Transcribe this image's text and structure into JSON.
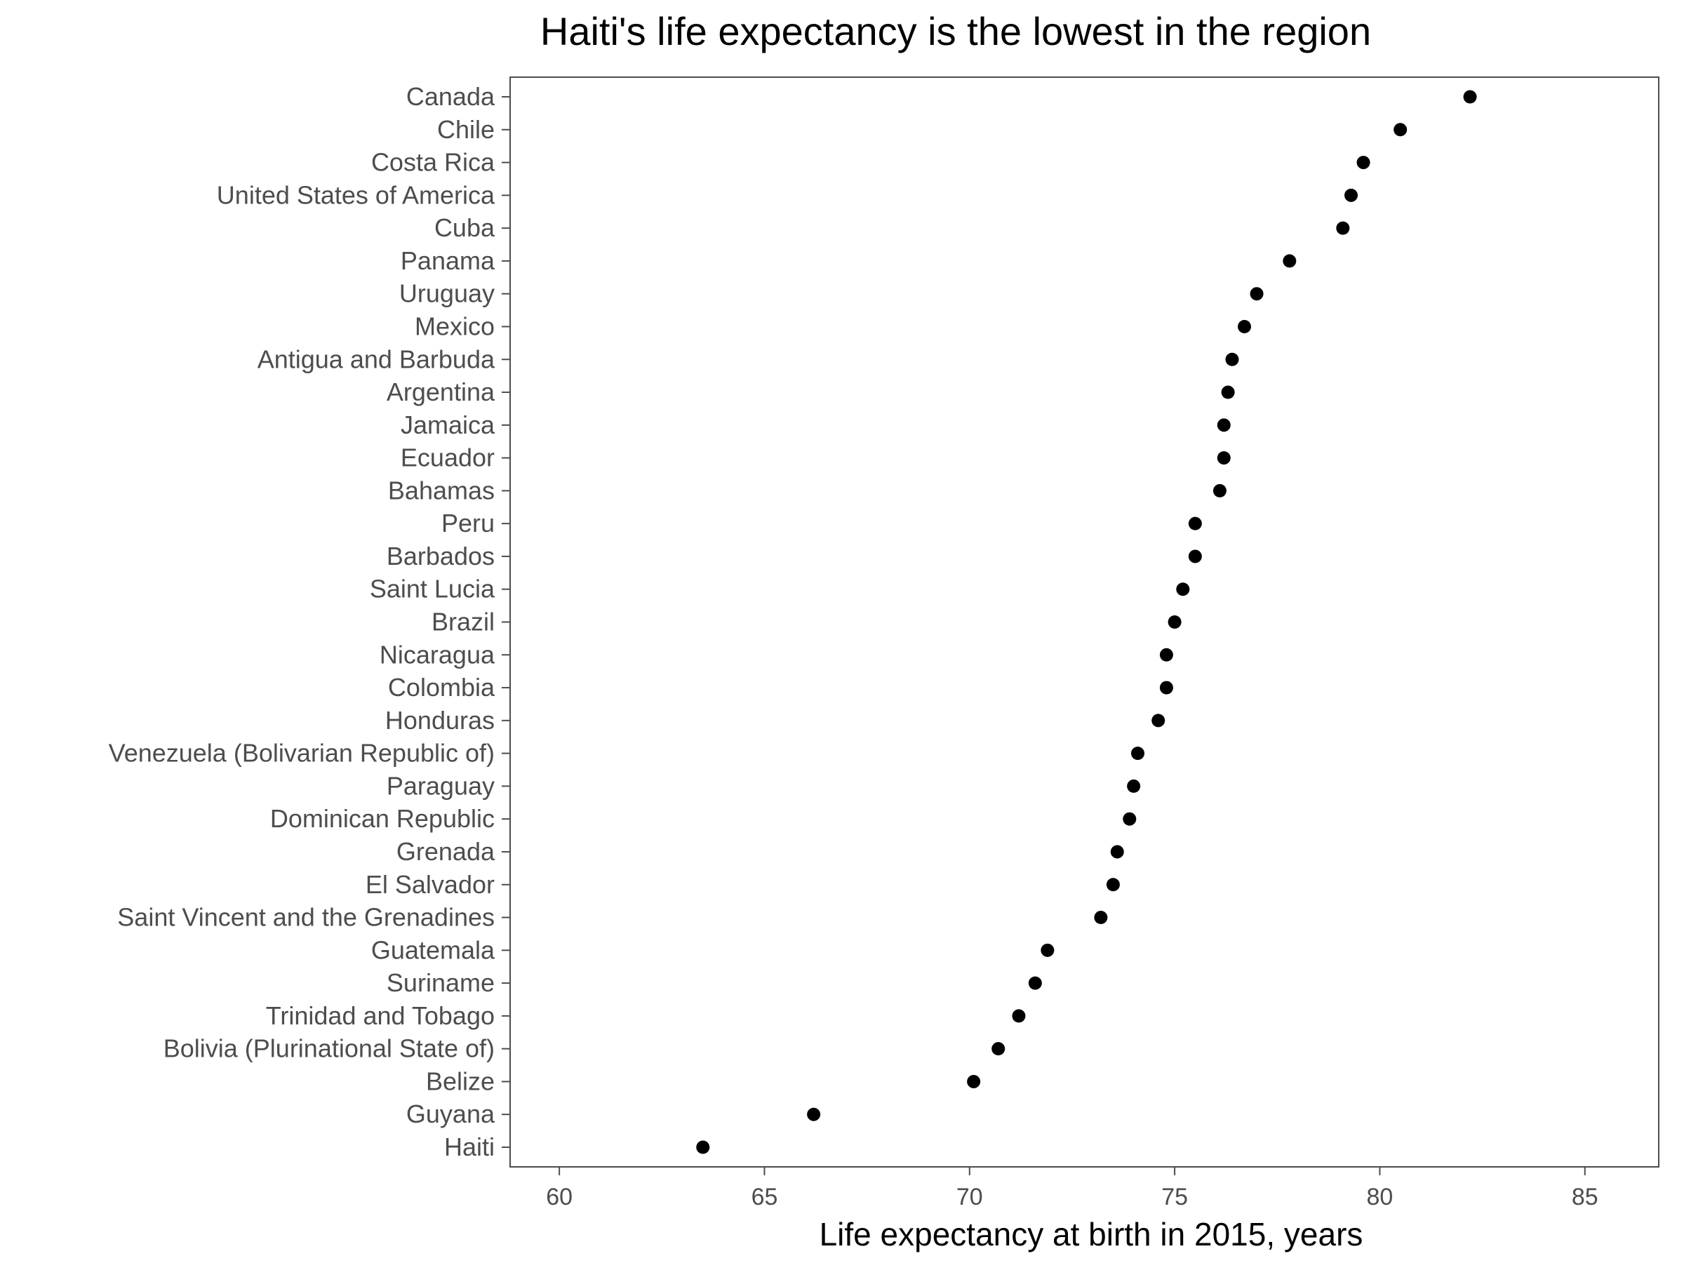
{
  "chart_data": {
    "type": "scatter",
    "title": "Haiti's life expectancy is the lowest in the region",
    "xlabel": "Life expectancy at birth in 2015, years",
    "ylabel": "",
    "xlim": [
      58.8,
      86.8
    ],
    "x_ticks": [
      60,
      65,
      70,
      75,
      80,
      85
    ],
    "grid": false,
    "legend": "none",
    "categories": [
      "Canada",
      "Chile",
      "Costa Rica",
      "United States of America",
      "Cuba",
      "Panama",
      "Uruguay",
      "Mexico",
      "Antigua and Barbuda",
      "Argentina",
      "Jamaica",
      "Ecuador",
      "Bahamas",
      "Peru",
      "Barbados",
      "Saint Lucia",
      "Brazil",
      "Nicaragua",
      "Colombia",
      "Honduras",
      "Venezuela (Bolivarian Republic of)",
      "Paraguay",
      "Dominican Republic",
      "Grenada",
      "El Salvador",
      "Saint Vincent and the Grenadines",
      "Guatemala",
      "Suriname",
      "Trinidad and Tobago",
      "Bolivia (Plurinational State of)",
      "Belize",
      "Guyana",
      "Haiti"
    ],
    "values": [
      82.2,
      80.5,
      79.6,
      79.3,
      79.1,
      77.8,
      77.0,
      76.7,
      76.4,
      76.3,
      76.2,
      76.2,
      76.1,
      75.5,
      75.5,
      75.2,
      75.0,
      74.8,
      74.8,
      74.6,
      74.1,
      74.0,
      73.9,
      73.6,
      73.5,
      73.2,
      71.9,
      71.6,
      71.2,
      70.7,
      70.1,
      66.2,
      63.5
    ],
    "point_color": "#000000",
    "text_color": "#4d4d4d"
  }
}
